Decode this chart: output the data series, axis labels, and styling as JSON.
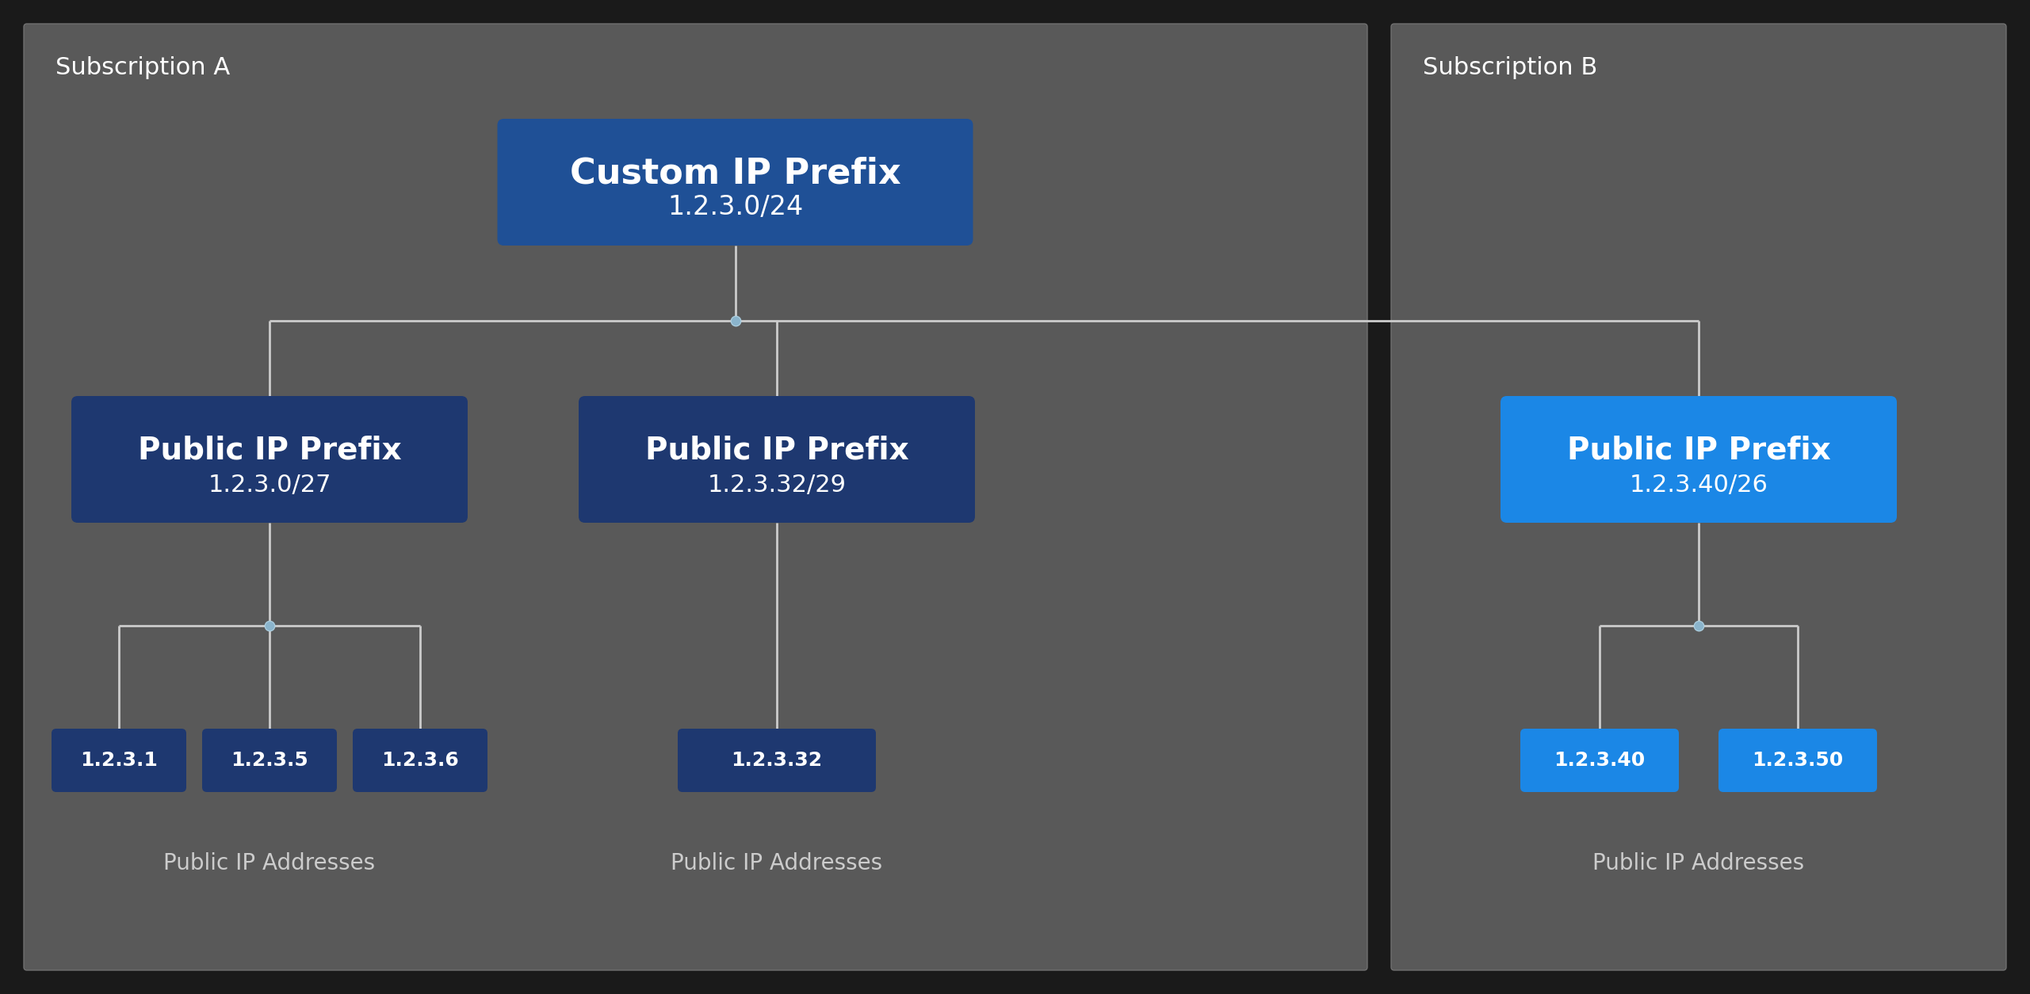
{
  "background_color": "#1a1a1a",
  "panel_color": "#595959",
  "panel_edge_color": "#6a6a6a",
  "custom_ip_prefix_color": "#1f5096",
  "public_ip_prefix_dark_color": "#1e3870",
  "public_ip_prefix_bright_color": "#1b87e6",
  "ip_address_dark_color": "#1e3870",
  "ip_address_bright_color": "#1b87e6",
  "line_color": "#cccccc",
  "connector_dot_color": "#8ab4cc",
  "connector_dot_fill": "#8ab4cc",
  "subscription_a_label": "Subscription A",
  "subscription_b_label": "Subscription B",
  "custom_ip_prefix_line1": "Custom IP Prefix",
  "custom_ip_prefix_line2": "1.2.3.0/24",
  "prefix_left_line1": "Public IP Prefix",
  "prefix_left_line2": "1.2.3.0/27",
  "prefix_mid_line1": "Public IP Prefix",
  "prefix_mid_line2": "1.2.3.32/29",
  "prefix_right_line1": "Public IP Prefix",
  "prefix_right_line2": "1.2.3.40/26",
  "ip_left": [
    "1.2.3.1",
    "1.2.3.5",
    "1.2.3.6"
  ],
  "ip_mid": [
    "1.2.3.32"
  ],
  "ip_right": [
    "1.2.3.40",
    "1.2.3.50"
  ],
  "label_public_ip": "Public IP Addresses",
  "fig_width": 25.61,
  "fig_height": 12.55,
  "dpi": 100
}
